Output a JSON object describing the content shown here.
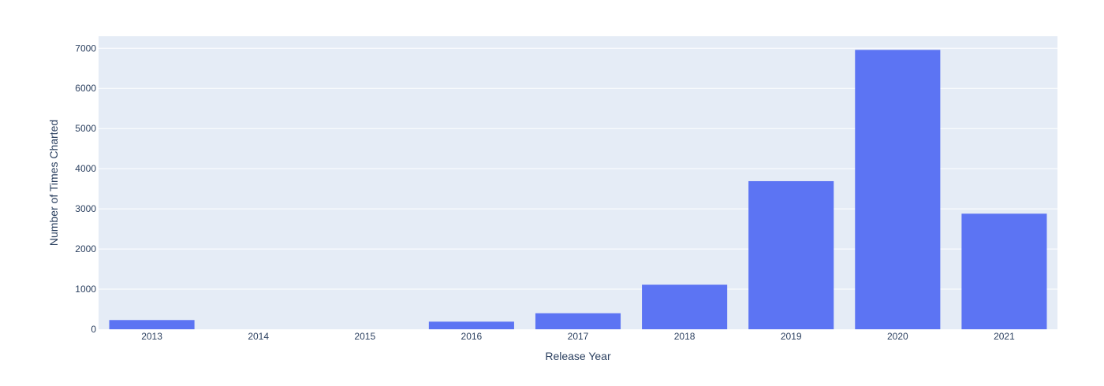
{
  "chart_data": {
    "type": "bar",
    "categories": [
      "2013",
      "2014",
      "2015",
      "2016",
      "2017",
      "2018",
      "2019",
      "2020",
      "2021"
    ],
    "values": [
      230,
      0,
      0,
      190,
      400,
      1110,
      3690,
      6960,
      2880
    ],
    "xlabel": "Release Year",
    "ylabel": "Number of Times Charted",
    "ylim": [
      0,
      7300
    ],
    "yticks": [
      0,
      1000,
      2000,
      3000,
      4000,
      5000,
      6000,
      7000
    ],
    "ytick_labels": [
      "0",
      "1000",
      "2000",
      "3000",
      "4000",
      "5000",
      "6000",
      "7000"
    ],
    "grid": true,
    "legend": "none",
    "colors": {
      "bar": "#5c74f3",
      "plot_background": "#e5ecf6",
      "gridline": "#ffffff",
      "text": "#2a3f5f"
    }
  }
}
